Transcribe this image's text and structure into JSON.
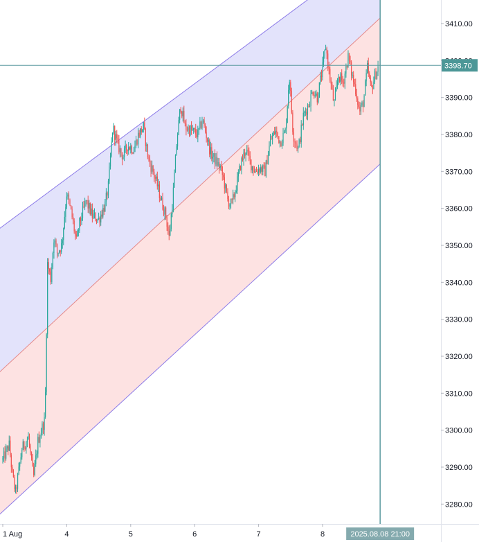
{
  "chart_data": {
    "type": "candlestick",
    "x_tick_labels": [
      "1 Aug",
      "4",
      "5",
      "6",
      "7",
      "8"
    ],
    "y_ticks": [
      3280,
      3290,
      3300,
      3310,
      3320,
      3330,
      3340,
      3350,
      3360,
      3370,
      3380,
      3390,
      3400,
      3410
    ],
    "ylim": [
      3275.6,
      3415.3
    ],
    "x_range": [
      0,
      6.5
    ],
    "crosshair": {
      "price_label": "3398.70",
      "price": 3398.7,
      "time_label": "2025.08.08 21:00",
      "x_pos": 5.9
    },
    "regression_channel": {
      "upper": {
        "start": [
          0,
          3355.2
        ],
        "end": [
          5.9,
          3431.0
        ]
      },
      "middle": {
        "start": [
          0,
          3316.5
        ],
        "end": [
          5.9,
          3411.5
        ]
      },
      "lower": {
        "start": [
          0,
          3278.0
        ],
        "end": [
          5.9,
          3372.0
        ]
      }
    },
    "price_path": [
      [
        0.0,
        3292
      ],
      [
        0.1,
        3296
      ],
      [
        0.15,
        3288
      ],
      [
        0.2,
        3283
      ],
      [
        0.3,
        3295
      ],
      [
        0.4,
        3298
      ],
      [
        0.48,
        3287
      ],
      [
        0.55,
        3297
      ],
      [
        0.62,
        3301
      ],
      [
        0.66,
        3303
      ],
      [
        0.7,
        3345
      ],
      [
        0.75,
        3341
      ],
      [
        0.8,
        3352
      ],
      [
        0.85,
        3348
      ],
      [
        0.92,
        3350
      ],
      [
        1.0,
        3364
      ],
      [
        1.08,
        3358
      ],
      [
        1.15,
        3351
      ],
      [
        1.2,
        3356
      ],
      [
        1.3,
        3362
      ],
      [
        1.4,
        3358
      ],
      [
        1.5,
        3357
      ],
      [
        1.6,
        3361
      ],
      [
        1.65,
        3366
      ],
      [
        1.72,
        3382
      ],
      [
        1.8,
        3377
      ],
      [
        1.88,
        3374
      ],
      [
        1.95,
        3377
      ],
      [
        2.05,
        3376
      ],
      [
        2.12,
        3380
      ],
      [
        2.2,
        3382
      ],
      [
        2.28,
        3373
      ],
      [
        2.35,
        3370
      ],
      [
        2.42,
        3366
      ],
      [
        2.48,
        3362
      ],
      [
        2.55,
        3358
      ],
      [
        2.6,
        3352
      ],
      [
        2.66,
        3363
      ],
      [
        2.72,
        3378
      ],
      [
        2.78,
        3388
      ],
      [
        2.85,
        3382
      ],
      [
        2.95,
        3381
      ],
      [
        3.05,
        3380
      ],
      [
        3.12,
        3384
      ],
      [
        3.18,
        3380
      ],
      [
        3.25,
        3375
      ],
      [
        3.32,
        3373
      ],
      [
        3.4,
        3371
      ],
      [
        3.45,
        3368
      ],
      [
        3.52,
        3362
      ],
      [
        3.58,
        3361
      ],
      [
        3.65,
        3366
      ],
      [
        3.72,
        3372
      ],
      [
        3.8,
        3376
      ],
      [
        3.88,
        3372
      ],
      [
        3.95,
        3370
      ],
      [
        4.02,
        3371
      ],
      [
        4.1,
        3370
      ],
      [
        4.18,
        3378
      ],
      [
        4.26,
        3381
      ],
      [
        4.34,
        3378
      ],
      [
        4.42,
        3381
      ],
      [
        4.48,
        3396
      ],
      [
        4.54,
        3380
      ],
      [
        4.62,
        3376
      ],
      [
        4.7,
        3385
      ],
      [
        4.78,
        3388
      ],
      [
        4.85,
        3392
      ],
      [
        4.92,
        3390
      ],
      [
        5.0,
        3398
      ],
      [
        5.05,
        3404
      ],
      [
        5.1,
        3397
      ],
      [
        5.18,
        3388
      ],
      [
        5.25,
        3396
      ],
      [
        5.32,
        3394
      ],
      [
        5.4,
        3401
      ],
      [
        5.46,
        3396
      ],
      [
        5.52,
        3392
      ],
      [
        5.58,
        3386
      ],
      [
        5.64,
        3389
      ],
      [
        5.7,
        3398
      ],
      [
        5.76,
        3392
      ],
      [
        5.82,
        3396
      ],
      [
        5.88,
        3398.7
      ]
    ],
    "colors": {
      "up": "#26a69a",
      "down": "#ef5350",
      "upper_fill": "#e3e3fb",
      "lower_fill": "#fde2e2",
      "channel_line": "#8c7be8",
      "crosshair": "#5b9aa0",
      "price_label_bg": "#4c9797",
      "time_label_bg": "#84aaae"
    }
  }
}
